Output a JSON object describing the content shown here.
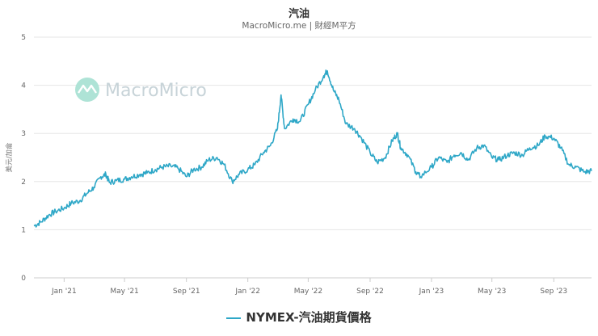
{
  "title": "汽油",
  "subtitle": "MacroMicro.me | 財經M平方",
  "watermark": "MacroMicro",
  "legend_label": "NYMEX-汽油期貨價格",
  "colors": {
    "series": "#2ea7c7",
    "grid": "#e6e6e6",
    "watermark": "#c7d3d8"
  },
  "chart_data": {
    "type": "line",
    "title": "汽油",
    "ylabel": "美元/加侖",
    "xlabel": "",
    "ylim": [
      0,
      5
    ],
    "y_ticks": [
      0,
      1,
      2,
      3,
      4,
      5
    ],
    "x_tick_labels": [
      "Jan '21",
      "May '21",
      "Sep '21",
      "Jan '22",
      "May '22",
      "Sep '22",
      "Jan '23",
      "May '23",
      "Sep '23"
    ],
    "x_ticks": [
      "2021-01-01",
      "2021-05-01",
      "2021-09-01",
      "2022-01-01",
      "2022-05-01",
      "2022-09-01",
      "2023-01-01",
      "2023-05-01",
      "2023-09-01"
    ],
    "x_range": [
      "2020-11-02",
      "2023-11-15"
    ],
    "grid": true,
    "legend_position": "bottom",
    "series": [
      {
        "name": "NYMEX-汽油期貨價格",
        "points": [
          [
            "2020-11-02",
            1.08
          ],
          [
            "2020-11-16",
            1.16
          ],
          [
            "2020-12-01",
            1.3
          ],
          [
            "2020-12-15",
            1.38
          ],
          [
            "2021-01-01",
            1.45
          ],
          [
            "2021-01-15",
            1.55
          ],
          [
            "2021-02-01",
            1.6
          ],
          [
            "2021-02-15",
            1.75
          ],
          [
            "2021-03-01",
            1.88
          ],
          [
            "2021-03-15",
            2.1
          ],
          [
            "2021-03-25",
            2.15
          ],
          [
            "2021-04-01",
            1.98
          ],
          [
            "2021-04-15",
            2.02
          ],
          [
            "2021-05-01",
            2.05
          ],
          [
            "2021-05-15",
            2.1
          ],
          [
            "2021-06-01",
            2.15
          ],
          [
            "2021-06-15",
            2.18
          ],
          [
            "2021-07-01",
            2.25
          ],
          [
            "2021-07-15",
            2.3
          ],
          [
            "2021-08-01",
            2.32
          ],
          [
            "2021-08-15",
            2.28
          ],
          [
            "2021-09-01",
            2.1
          ],
          [
            "2021-09-15",
            2.25
          ],
          [
            "2021-10-01",
            2.3
          ],
          [
            "2021-10-15",
            2.45
          ],
          [
            "2021-11-01",
            2.5
          ],
          [
            "2021-11-15",
            2.35
          ],
          [
            "2021-12-01",
            2.0
          ],
          [
            "2021-12-15",
            2.15
          ],
          [
            "2022-01-01",
            2.25
          ],
          [
            "2022-01-15",
            2.35
          ],
          [
            "2022-02-01",
            2.6
          ],
          [
            "2022-02-15",
            2.75
          ],
          [
            "2022-03-01",
            3.1
          ],
          [
            "2022-03-08",
            3.8
          ],
          [
            "2022-03-15",
            3.1
          ],
          [
            "2022-04-01",
            3.3
          ],
          [
            "2022-04-15",
            3.25
          ],
          [
            "2022-05-01",
            3.6
          ],
          [
            "2022-05-15",
            3.9
          ],
          [
            "2022-06-01",
            4.2
          ],
          [
            "2022-06-08",
            4.3
          ],
          [
            "2022-06-20",
            3.9
          ],
          [
            "2022-07-01",
            3.7
          ],
          [
            "2022-07-15",
            3.2
          ],
          [
            "2022-08-01",
            3.1
          ],
          [
            "2022-08-15",
            2.9
          ],
          [
            "2022-09-01",
            2.6
          ],
          [
            "2022-09-15",
            2.4
          ],
          [
            "2022-10-01",
            2.5
          ],
          [
            "2022-10-15",
            2.85
          ],
          [
            "2022-10-25",
            3.0
          ],
          [
            "2022-11-01",
            2.7
          ],
          [
            "2022-11-15",
            2.55
          ],
          [
            "2022-12-01",
            2.2
          ],
          [
            "2022-12-10",
            2.1
          ],
          [
            "2023-01-01",
            2.3
          ],
          [
            "2023-01-15",
            2.5
          ],
          [
            "2023-02-01",
            2.4
          ],
          [
            "2023-02-15",
            2.55
          ],
          [
            "2023-03-01",
            2.6
          ],
          [
            "2023-03-15",
            2.45
          ],
          [
            "2023-04-01",
            2.7
          ],
          [
            "2023-04-15",
            2.75
          ],
          [
            "2023-05-01",
            2.5
          ],
          [
            "2023-05-15",
            2.45
          ],
          [
            "2023-06-01",
            2.55
          ],
          [
            "2023-06-15",
            2.6
          ],
          [
            "2023-07-01",
            2.55
          ],
          [
            "2023-07-15",
            2.7
          ],
          [
            "2023-08-01",
            2.75
          ],
          [
            "2023-08-15",
            2.95
          ],
          [
            "2023-09-01",
            2.9
          ],
          [
            "2023-09-15",
            2.7
          ],
          [
            "2023-10-01",
            2.35
          ],
          [
            "2023-10-15",
            2.3
          ],
          [
            "2023-11-01",
            2.2
          ],
          [
            "2023-11-15",
            2.22
          ]
        ]
      }
    ]
  }
}
